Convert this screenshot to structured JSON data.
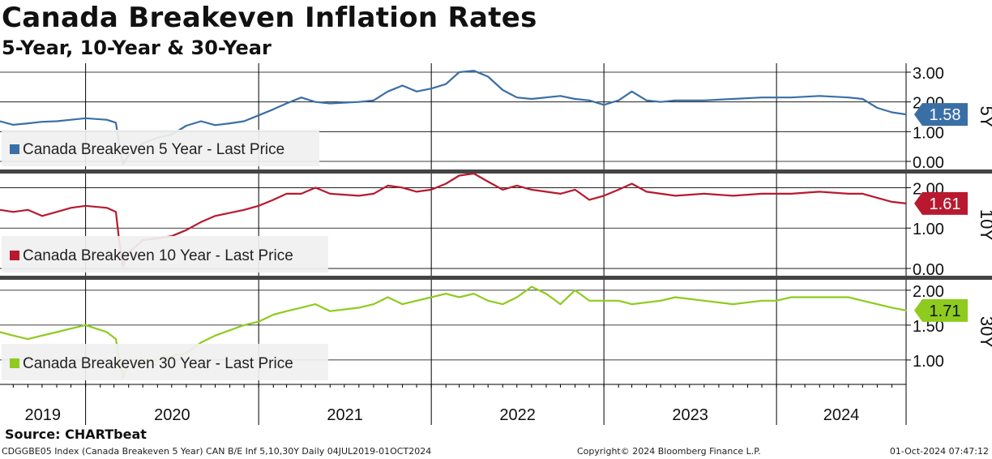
{
  "header": {
    "title": "Canada Breakeven Inflation Rates",
    "subtitle": "5-Year, 10-Year & 30-Year"
  },
  "footer": {
    "source": "Source: CHARTbeat",
    "ticker_info": "CDGGBE05 Index (Canada Breakeven 5 Year) CAN B/E Inf 5,10,30Y  Daily 04JUL2019-01OCT2024",
    "copyright": "Copyright© 2024 Bloomberg Finance L.P.",
    "timestamp": "01-Oct-2024 07:47:12"
  },
  "chart_data": {
    "type": "line",
    "x_range": [
      "2019-07-04",
      "2024-10-01"
    ],
    "x_ticks": [
      "2019",
      "2020",
      "2021",
      "2022",
      "2023",
      "2024"
    ],
    "grid": true,
    "panels": [
      {
        "name": "Canada Breakeven 5 Year - Last Price",
        "tag": "5Y",
        "last_value": "1.58",
        "color": "#3a6fa6",
        "ylim": [
          -0.3,
          3.3
        ],
        "y_ticks": [
          "3.00",
          "2.00",
          "1.00",
          "0.00"
        ],
        "series": [
          [
            "2019-07-04",
            1.35
          ],
          [
            "2019-08-01",
            1.23
          ],
          [
            "2019-09-01",
            1.28
          ],
          [
            "2019-10-01",
            1.33
          ],
          [
            "2019-11-01",
            1.35
          ],
          [
            "2019-12-01",
            1.4
          ],
          [
            "2020-01-01",
            1.45
          ],
          [
            "2020-02-15",
            1.4
          ],
          [
            "2020-03-05",
            1.3
          ],
          [
            "2020-03-12",
            0.6
          ],
          [
            "2020-03-20",
            -0.1
          ],
          [
            "2020-04-01",
            0.2
          ],
          [
            "2020-05-01",
            0.6
          ],
          [
            "2020-06-01",
            0.8
          ],
          [
            "2020-07-01",
            0.9
          ],
          [
            "2020-08-01",
            1.2
          ],
          [
            "2020-09-01",
            1.35
          ],
          [
            "2020-10-01",
            1.22
          ],
          [
            "2020-11-01",
            1.28
          ],
          [
            "2020-12-01",
            1.35
          ],
          [
            "2021-01-01",
            1.55
          ],
          [
            "2021-02-01",
            1.75
          ],
          [
            "2021-03-01",
            1.95
          ],
          [
            "2021-04-01",
            2.15
          ],
          [
            "2021-05-01",
            2.0
          ],
          [
            "2021-06-01",
            1.95
          ],
          [
            "2021-08-01",
            2.0
          ],
          [
            "2021-09-01",
            2.05
          ],
          [
            "2021-10-01",
            2.35
          ],
          [
            "2021-11-01",
            2.55
          ],
          [
            "2021-12-01",
            2.35
          ],
          [
            "2022-01-01",
            2.45
          ],
          [
            "2022-02-01",
            2.6
          ],
          [
            "2022-03-01",
            3.0
          ],
          [
            "2022-04-01",
            3.05
          ],
          [
            "2022-05-01",
            2.85
          ],
          [
            "2022-06-01",
            2.4
          ],
          [
            "2022-07-01",
            2.15
          ],
          [
            "2022-08-01",
            2.1
          ],
          [
            "2022-10-01",
            2.2
          ],
          [
            "2022-11-01",
            2.1
          ],
          [
            "2022-12-01",
            2.05
          ],
          [
            "2023-01-01",
            1.9
          ],
          [
            "2023-02-01",
            2.05
          ],
          [
            "2023-03-01",
            2.35
          ],
          [
            "2023-04-01",
            2.05
          ],
          [
            "2023-05-01",
            2.0
          ],
          [
            "2023-06-01",
            2.05
          ],
          [
            "2023-08-01",
            2.05
          ],
          [
            "2023-10-01",
            2.1
          ],
          [
            "2023-12-01",
            2.15
          ],
          [
            "2024-02-01",
            2.15
          ],
          [
            "2024-04-01",
            2.2
          ],
          [
            "2024-06-01",
            2.15
          ],
          [
            "2024-07-01",
            2.1
          ],
          [
            "2024-08-01",
            1.8
          ],
          [
            "2024-09-01",
            1.65
          ],
          [
            "2024-10-01",
            1.58
          ]
        ]
      },
      {
        "name": "Canada Breakeven 10 Year - Last Price",
        "tag": "10Y",
        "last_value": "1.61",
        "color": "#b8192e",
        "ylim": [
          -0.2,
          2.35
        ],
        "y_ticks": [
          "2.00",
          "1.00",
          "0.00"
        ],
        "series": [
          [
            "2019-07-04",
            1.45
          ],
          [
            "2019-08-01",
            1.4
          ],
          [
            "2019-09-01",
            1.45
          ],
          [
            "2019-10-01",
            1.3
          ],
          [
            "2019-11-01",
            1.4
          ],
          [
            "2019-12-01",
            1.5
          ],
          [
            "2020-01-01",
            1.55
          ],
          [
            "2020-02-15",
            1.5
          ],
          [
            "2020-03-05",
            1.4
          ],
          [
            "2020-03-12",
            0.7
          ],
          [
            "2020-03-20",
            0.05
          ],
          [
            "2020-04-01",
            0.4
          ],
          [
            "2020-05-01",
            0.7
          ],
          [
            "2020-06-01",
            0.75
          ],
          [
            "2020-07-01",
            0.8
          ],
          [
            "2020-08-01",
            0.95
          ],
          [
            "2020-09-01",
            1.15
          ],
          [
            "2020-10-01",
            1.3
          ],
          [
            "2020-12-01",
            1.45
          ],
          [
            "2021-01-01",
            1.55
          ],
          [
            "2021-02-01",
            1.7
          ],
          [
            "2021-03-01",
            1.85
          ],
          [
            "2021-04-01",
            1.85
          ],
          [
            "2021-05-01",
            2.0
          ],
          [
            "2021-06-01",
            1.85
          ],
          [
            "2021-08-01",
            1.8
          ],
          [
            "2021-09-01",
            1.85
          ],
          [
            "2021-10-01",
            2.05
          ],
          [
            "2021-11-01",
            2.0
          ],
          [
            "2021-12-01",
            1.9
          ],
          [
            "2022-01-01",
            1.95
          ],
          [
            "2022-02-01",
            2.1
          ],
          [
            "2022-03-01",
            2.3
          ],
          [
            "2022-04-01",
            2.35
          ],
          [
            "2022-05-01",
            2.15
          ],
          [
            "2022-06-01",
            1.95
          ],
          [
            "2022-07-01",
            2.05
          ],
          [
            "2022-08-01",
            1.95
          ],
          [
            "2022-10-01",
            1.85
          ],
          [
            "2022-11-01",
            1.95
          ],
          [
            "2022-12-01",
            1.7
          ],
          [
            "2023-01-01",
            1.8
          ],
          [
            "2023-02-01",
            1.95
          ],
          [
            "2023-03-01",
            2.1
          ],
          [
            "2023-04-01",
            1.9
          ],
          [
            "2023-06-01",
            1.8
          ],
          [
            "2023-08-01",
            1.85
          ],
          [
            "2023-10-01",
            1.8
          ],
          [
            "2023-12-01",
            1.85
          ],
          [
            "2024-02-01",
            1.85
          ],
          [
            "2024-04-01",
            1.9
          ],
          [
            "2024-06-01",
            1.85
          ],
          [
            "2024-07-01",
            1.85
          ],
          [
            "2024-08-01",
            1.75
          ],
          [
            "2024-09-01",
            1.65
          ],
          [
            "2024-10-01",
            1.61
          ]
        ]
      },
      {
        "name": "Canada Breakeven 30 Year - Last Price",
        "tag": "30Y",
        "last_value": "1.71",
        "color": "#8ecb1e",
        "ylim": [
          0.65,
          2.15
        ],
        "y_ticks": [
          "2.00",
          "1.50",
          "1.00"
        ],
        "series": [
          [
            "2019-07-04",
            1.4
          ],
          [
            "2019-08-01",
            1.35
          ],
          [
            "2019-09-01",
            1.3
          ],
          [
            "2019-10-01",
            1.35
          ],
          [
            "2019-11-01",
            1.4
          ],
          [
            "2019-12-01",
            1.45
          ],
          [
            "2020-01-01",
            1.5
          ],
          [
            "2020-02-15",
            1.4
          ],
          [
            "2020-03-05",
            1.3
          ],
          [
            "2020-03-12",
            1.0
          ],
          [
            "2020-03-20",
            0.75
          ],
          [
            "2020-04-01",
            0.95
          ],
          [
            "2020-05-01",
            0.95
          ],
          [
            "2020-06-01",
            1.0
          ],
          [
            "2020-07-01",
            1.05
          ],
          [
            "2020-08-01",
            1.1
          ],
          [
            "2020-09-01",
            1.25
          ],
          [
            "2020-10-01",
            1.35
          ],
          [
            "2020-12-01",
            1.5
          ],
          [
            "2021-01-01",
            1.55
          ],
          [
            "2021-02-01",
            1.65
          ],
          [
            "2021-03-01",
            1.7
          ],
          [
            "2021-04-01",
            1.75
          ],
          [
            "2021-05-01",
            1.8
          ],
          [
            "2021-06-01",
            1.7
          ],
          [
            "2021-08-01",
            1.75
          ],
          [
            "2021-09-01",
            1.8
          ],
          [
            "2021-10-01",
            1.9
          ],
          [
            "2021-11-01",
            1.8
          ],
          [
            "2021-12-01",
            1.85
          ],
          [
            "2022-01-01",
            1.9
          ],
          [
            "2022-02-01",
            1.95
          ],
          [
            "2022-03-01",
            1.9
          ],
          [
            "2022-04-01",
            1.95
          ],
          [
            "2022-05-01",
            1.85
          ],
          [
            "2022-06-01",
            1.8
          ],
          [
            "2022-07-01",
            1.9
          ],
          [
            "2022-08-01",
            2.05
          ],
          [
            "2022-09-01",
            1.95
          ],
          [
            "2022-10-01",
            1.8
          ],
          [
            "2022-11-01",
            2.0
          ],
          [
            "2022-12-01",
            1.85
          ],
          [
            "2023-01-01",
            1.85
          ],
          [
            "2023-02-01",
            1.85
          ],
          [
            "2023-03-01",
            1.8
          ],
          [
            "2023-05-01",
            1.85
          ],
          [
            "2023-06-01",
            1.9
          ],
          [
            "2023-08-01",
            1.85
          ],
          [
            "2023-10-01",
            1.8
          ],
          [
            "2023-12-01",
            1.85
          ],
          [
            "2024-01-01",
            1.85
          ],
          [
            "2024-02-01",
            1.9
          ],
          [
            "2024-04-01",
            1.9
          ],
          [
            "2024-06-01",
            1.9
          ],
          [
            "2024-07-01",
            1.85
          ],
          [
            "2024-08-01",
            1.8
          ],
          [
            "2024-09-01",
            1.75
          ],
          [
            "2024-10-01",
            1.71
          ]
        ]
      }
    ]
  }
}
